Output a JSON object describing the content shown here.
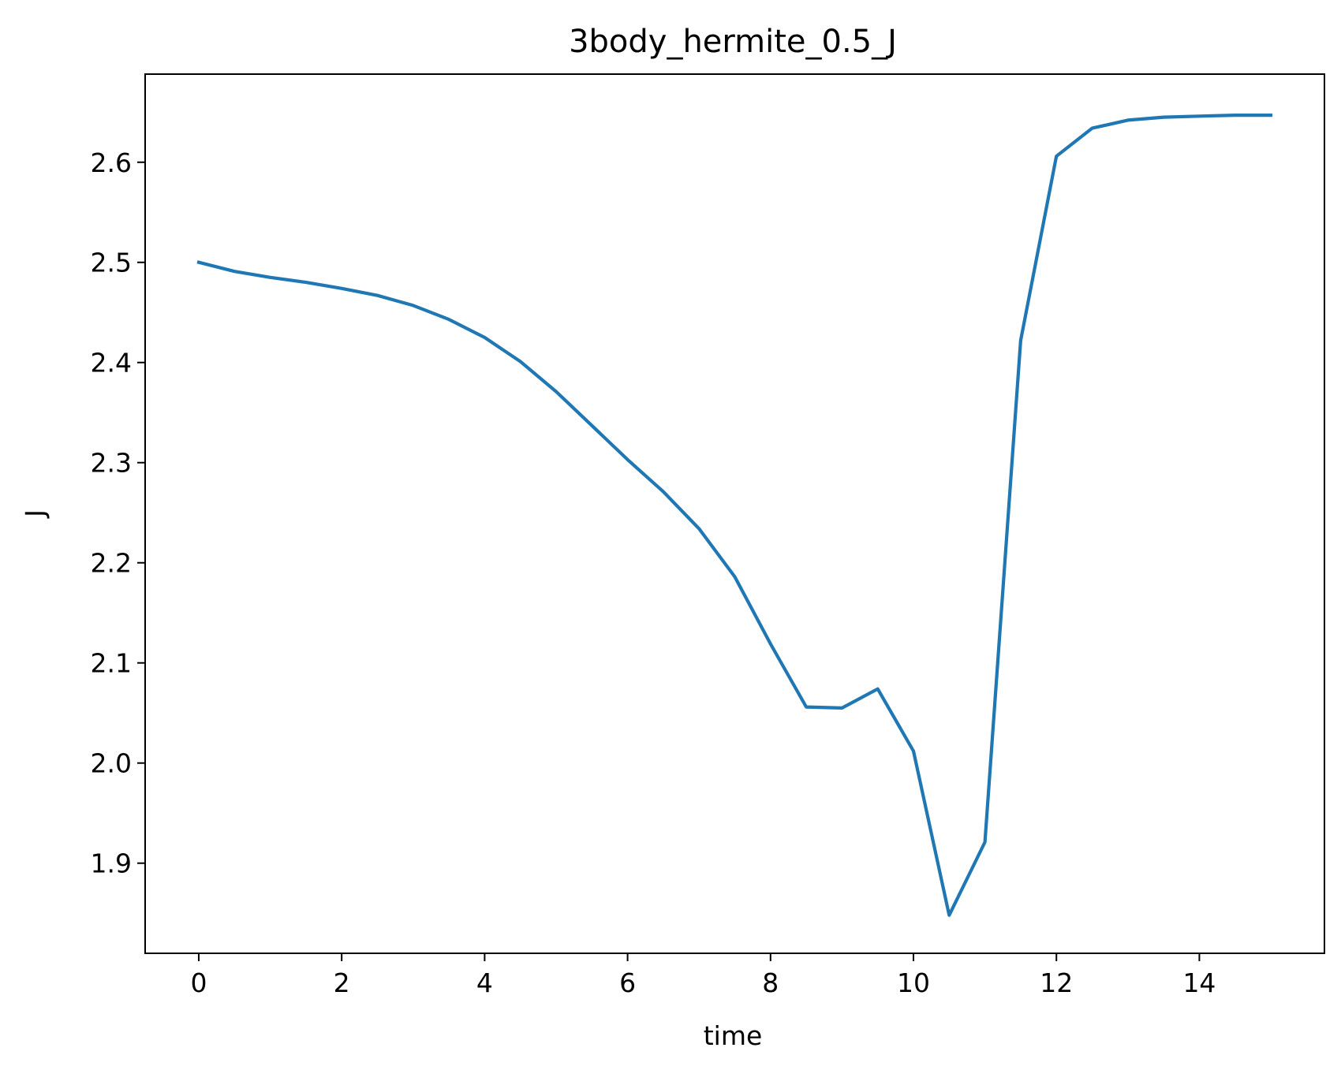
{
  "chart_data": {
    "type": "line",
    "title": "3body_hermite_0.5_J",
    "xlabel": "time",
    "ylabel": "J",
    "xlim": [
      -0.75,
      15.75
    ],
    "ylim": [
      1.81,
      2.688
    ],
    "grid": false,
    "x_ticks": [
      0,
      2,
      4,
      6,
      8,
      10,
      12,
      14
    ],
    "x_tick_labels": [
      "0",
      "2",
      "4",
      "6",
      "8",
      "10",
      "12",
      "14"
    ],
    "y_ticks": [
      1.9,
      2.0,
      2.1,
      2.2,
      2.3,
      2.4,
      2.5,
      2.6
    ],
    "y_tick_labels": [
      "1.9",
      "2.0",
      "2.1",
      "2.2",
      "2.3",
      "2.4",
      "2.5",
      "2.6"
    ],
    "series": [
      {
        "color": "#1f77b4",
        "x": [
          0,
          0.5,
          1,
          1.5,
          2,
          2.5,
          3,
          3.5,
          4,
          4.5,
          5,
          5.5,
          6,
          6.5,
          7,
          7.5,
          8,
          8.5,
          9,
          9.5,
          10,
          10.5,
          11,
          11.5,
          12,
          12.5,
          13,
          13.5,
          14,
          14.5,
          15
        ],
        "y": [
          2.5,
          2.491,
          2.485,
          2.48,
          2.474,
          2.467,
          2.457,
          2.443,
          2.425,
          2.401,
          2.371,
          2.337,
          2.303,
          2.271,
          2.234,
          2.186,
          2.119,
          2.056,
          2.055,
          2.074,
          2.012,
          1.848,
          1.921,
          2.422,
          2.606,
          2.634,
          2.642,
          2.645,
          2.646,
          2.647,
          2.647
        ]
      }
    ]
  }
}
